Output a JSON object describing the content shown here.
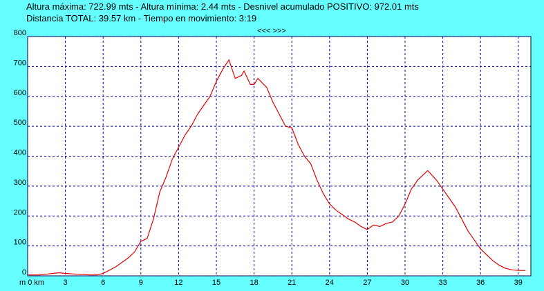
{
  "header": {
    "line1": "Altura máxima: 722.99 mts - Altura mínima: 2.44 mts - Desnivel acumulado POSITIVO: 972.01 mts",
    "line2": "Distancia TOTAL: 39.57 km - Tiempo en movimiento: 3:19",
    "nav": "<<< >>>"
  },
  "chart_data": {
    "type": "line",
    "x": [
      0,
      1,
      2,
      2.5,
      3,
      4,
      5,
      5.5,
      6,
      7,
      7.5,
      8,
      8.5,
      9,
      9.5,
      10,
      10.5,
      11,
      11.5,
      12,
      12.5,
      13,
      13.5,
      14,
      14.5,
      15,
      15.5,
      16,
      16.5,
      17,
      17.2,
      17.7,
      18,
      18.3,
      19,
      19.5,
      20,
      20.5,
      21,
      21.5,
      22,
      22.5,
      23,
      23.5,
      24,
      24.5,
      25,
      25.5,
      26,
      26.5,
      27,
      27.5,
      28,
      28.5,
      29,
      29.5,
      30,
      30.5,
      31,
      31.5,
      31.8,
      32.5,
      33,
      33.5,
      34,
      34.5,
      35,
      35.5,
      36,
      36.5,
      37,
      37.5,
      38,
      38.5,
      39,
      39.57
    ],
    "series": [
      {
        "color": "#e00000",
        "values": [
          3,
          3,
          8,
          10,
          8,
          5,
          3,
          3,
          8,
          30,
          45,
          60,
          80,
          115,
          125,
          190,
          280,
          330,
          390,
          430,
          470,
          500,
          540,
          570,
          600,
          650,
          690,
          722,
          660,
          670,
          685,
          640,
          640,
          660,
          630,
          580,
          540,
          500,
          495,
          440,
          400,
          375,
          320,
          275,
          240,
          220,
          205,
          190,
          180,
          165,
          155,
          170,
          165,
          175,
          180,
          200,
          240,
          290,
          320,
          340,
          352,
          320,
          290,
          260,
          230,
          190,
          150,
          120,
          90,
          70,
          50,
          35,
          25,
          20,
          18,
          18
        ]
      }
    ],
    "xlim": [
      0,
      40
    ],
    "ylim": [
      0,
      800
    ],
    "xticks": [
      {
        "value": 0,
        "label": "m 0 km"
      },
      3,
      6,
      9,
      12,
      15,
      18,
      21,
      24,
      27,
      30,
      33,
      36,
      39
    ],
    "yticks": [
      0,
      100,
      200,
      300,
      400,
      500,
      600,
      700,
      800
    ],
    "grid": true
  }
}
